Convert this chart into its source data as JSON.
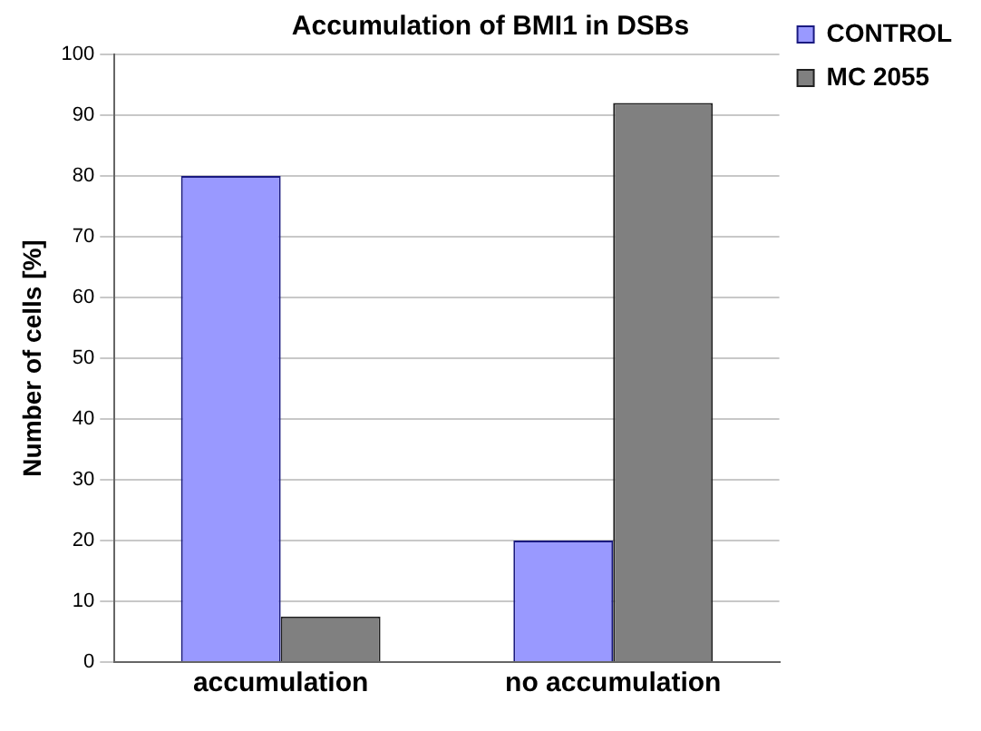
{
  "chart_data": {
    "type": "bar",
    "title": "Accumulation of BMI1 in DSBs",
    "ylabel": "Number of cells [%]",
    "categories": [
      "accumulation",
      "no accumulation"
    ],
    "series": [
      {
        "name": "CONTROL",
        "color": "#9999ff",
        "values": [
          80,
          20
        ]
      },
      {
        "name": "MC 2055",
        "color": "#808080",
        "values": [
          7.5,
          92
        ]
      }
    ],
    "ylim": [
      0,
      100
    ],
    "yticks": [
      0,
      10,
      20,
      30,
      40,
      50,
      60,
      70,
      80,
      90,
      100
    ],
    "grid": "y",
    "legend": "top right"
  }
}
